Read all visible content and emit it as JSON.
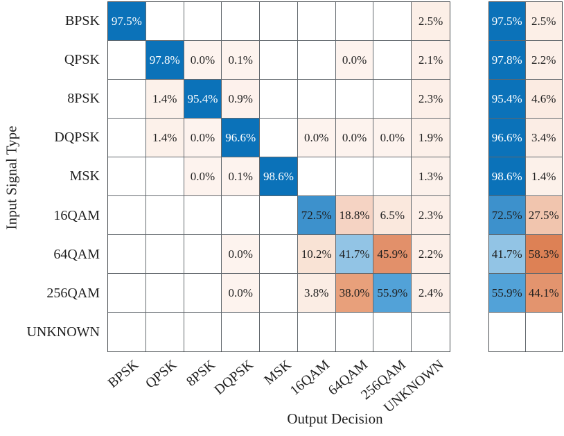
{
  "chart_data": {
    "type": "heatmap",
    "variant": "confusion-matrix",
    "title": "",
    "xlabel": "Output Decision",
    "ylabel": "Input Signal Type",
    "unit": "%",
    "classes": [
      "BPSK",
      "QPSK",
      "8PSK",
      "DQPSK",
      "MSK",
      "16QAM",
      "64QAM",
      "256QAM",
      "UNKNOWN"
    ],
    "matrix": [
      [
        97.5,
        null,
        null,
        null,
        null,
        null,
        null,
        null,
        2.5
      ],
      [
        null,
        97.8,
        0.0,
        0.1,
        null,
        null,
        0.0,
        null,
        2.1
      ],
      [
        null,
        1.4,
        95.4,
        0.9,
        null,
        null,
        null,
        null,
        2.3
      ],
      [
        null,
        1.4,
        0.0,
        96.6,
        null,
        0.0,
        0.0,
        0.0,
        1.9
      ],
      [
        null,
        null,
        0.0,
        0.1,
        98.6,
        null,
        null,
        null,
        1.3
      ],
      [
        null,
        null,
        null,
        null,
        null,
        72.5,
        18.8,
        6.5,
        2.3
      ],
      [
        null,
        null,
        null,
        0.0,
        null,
        10.2,
        41.7,
        45.9,
        2.2
      ],
      [
        null,
        null,
        null,
        0.0,
        null,
        3.8,
        38.0,
        55.9,
        2.4
      ],
      [
        null,
        null,
        null,
        null,
        null,
        null,
        null,
        null,
        null
      ]
    ],
    "row_summary": {
      "description": "per input class: correct vs incorrect percentage",
      "rows": [
        [
          97.5,
          2.5
        ],
        [
          97.8,
          2.2
        ],
        [
          95.4,
          4.6
        ],
        [
          96.6,
          3.4
        ],
        [
          98.6,
          1.4
        ],
        [
          72.5,
          27.5
        ],
        [
          41.7,
          58.3
        ],
        [
          55.9,
          44.1
        ],
        [
          null,
          null
        ]
      ]
    },
    "layout": {
      "legend": "none",
      "grid_lines": "on",
      "x_tick_rotation_deg": -40
    },
    "colors": {
      "grid_line_inner": "#61676c",
      "grid_line_outer": "#45494d",
      "text_dark": "#1f1f1f",
      "text_light": "#ffffff",
      "empty_cell": "#ffffff",
      "blue_ramp": [
        [
          0,
          "#deeef8"
        ],
        [
          41.7,
          "#92c4e5"
        ],
        [
          55.9,
          "#52a2d8"
        ],
        [
          72.5,
          "#3d91cc"
        ],
        [
          94,
          "#0b72b9"
        ],
        [
          100,
          "#0b72b9"
        ]
      ],
      "orange_ramp": [
        [
          0,
          "#fdf3ee"
        ],
        [
          6.5,
          "#fae8dd"
        ],
        [
          10.2,
          "#f9e3d5"
        ],
        [
          18.8,
          "#f5d3c3"
        ],
        [
          27.5,
          "#f1c5ae"
        ],
        [
          38,
          "#e8a07b"
        ],
        [
          45.9,
          "#e2906a"
        ],
        [
          58.3,
          "#dd8155"
        ],
        [
          100,
          "#cb5826"
        ]
      ],
      "white_text_threshold": 85
    }
  }
}
